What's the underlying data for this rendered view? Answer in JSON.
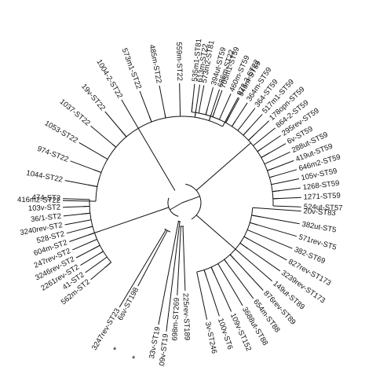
{
  "tree": {
    "groups": {
      "st22": [
        "973-3-ST22",
        "686m-ST22",
        "613m-ST22",
        "559m-ST22",
        "485m-ST22",
        "573m1-ST22",
        "1004-2-ST22",
        "19v-ST22",
        "1037-ST22",
        "1053-ST22",
        "974-ST22",
        "1044-ST22",
        "416m2-ST22"
      ],
      "st2": [
        "474-ST2",
        "103v-ST2",
        "36/1-ST2",
        "3240rev-ST2",
        "528-ST2",
        "604m-ST2",
        "247rev-ST2",
        "3246rev-ST2",
        "2261rev-ST2",
        "41-ST2",
        "562m-ST2"
      ],
      "basal": [
        "6sv-ST198",
        "3247rev-ST23",
        "33v-ST19",
        "109v-ST19",
        "698m-ST269",
        "225rev-ST189"
      ],
      "lower_right": [
        "3v-ST246",
        "100v-ST6",
        "109v-ST152",
        "3688ut-ST88",
        "654m-ST88",
        "876rev-ST89",
        "149ut-ST89",
        "3239rev-ST173",
        "827rev-ST173",
        "382-ST69",
        "571rev-ST5",
        "382ut-ST5",
        "20v-ST83"
      ],
      "st59": [
        "524ut-ST57",
        "1271-ST59",
        "1268-ST59",
        "105v-ST59",
        "646m2-ST59",
        "419ut-ST59",
        "288ut-ST59",
        "6v-ST59",
        "295rev-ST59",
        "864-2-ST59",
        "178opn-ST59",
        "517m1-ST59",
        "364-ST59",
        "364m-ST59",
        "545m-ST59",
        "460m-ST59",
        "705m1-ST59",
        "394ut-ST59",
        "573m2-ST81",
        "535m1-ST81"
      ]
    },
    "markers": [
      "*",
      "*"
    ]
  }
}
